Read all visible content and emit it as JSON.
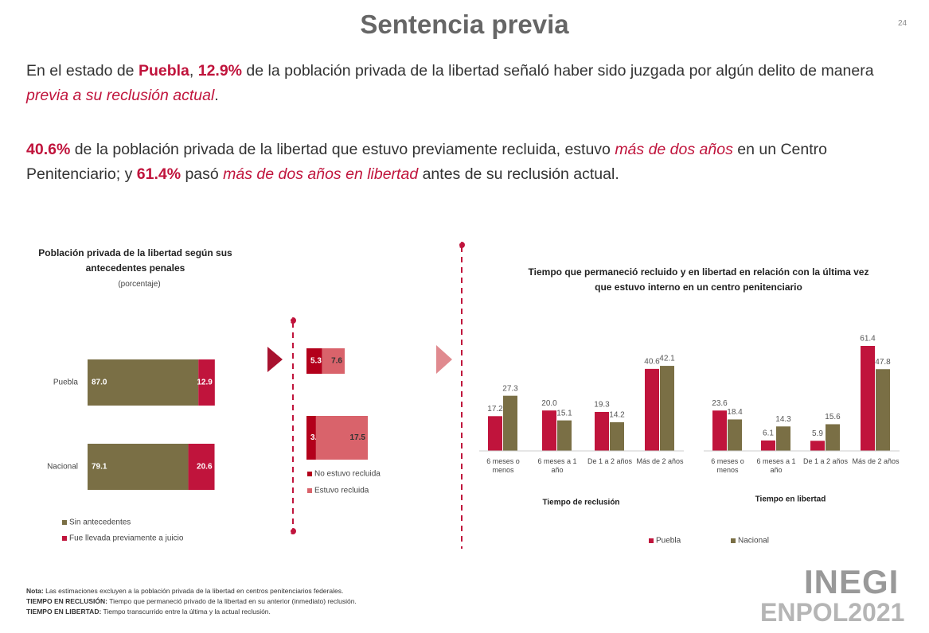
{
  "header": {
    "title": "Sentencia previa",
    "page": "24"
  },
  "paragraphs": [
    [
      "En el estado de ",
      "Puebla",
      ", ",
      "12.9%",
      " de la población privada de la libertad señaló haber sido juzgada por algún delito de manera ",
      "previa a su reclusión actual",
      "."
    ],
    [
      "40.6%",
      " de la población privada de la libertad que estuvo previamente recluida, estuvo ",
      "más de dos años",
      " en un Centro Penitenciario; y ",
      "61.4%",
      " pasó ",
      "más de dos años en libertad",
      " antes de su reclusión actual."
    ]
  ],
  "chart_data": [
    {
      "type": "hbar",
      "title": "Población privada de la libertad según sus antecedentes penales",
      "subtitle": "(porcentaje)",
      "categories": [
        "Puebla",
        "Nacional"
      ],
      "series": [
        {
          "name": "Sin antecedentes",
          "color": "#7a6f45",
          "values": [
            87.0,
            79.1
          ],
          "value_labels": [
            "87.0",
            "79.1"
          ]
        },
        {
          "name": "Fue llevada previamente a juicio",
          "color": "#c0143c",
          "values": [
            12.9,
            20.6
          ]
        }
      ]
    },
    {
      "type": "hbar",
      "categories": [
        null,
        null
      ],
      "series": [
        {
          "name": "No estuvo recluida",
          "color": "#b3001b",
          "values": [
            5.3,
            3.2
          ]
        },
        {
          "name": "Estuvo recluida",
          "color": "#d9636b",
          "values": [
            7.6,
            17.5
          ]
        }
      ]
    },
    {
      "type": "bar",
      "title": "Tiempo que permaneció recluido y en libertad en relación con la última vez que estuvo interno en un centro penitenciario",
      "xlabel": "Tiempo de reclusión",
      "categories": [
        "6 meses o menos",
        "6 meses a 1 año",
        "De 1 a 2 años",
        "Más de 2 años"
      ],
      "series": [
        {
          "name": "Puebla",
          "color": "#c0143c",
          "values": [
            17.2,
            20.0,
            19.3,
            40.6
          ],
          "value_labels": [
            "17.2",
            "20.0",
            "19.3",
            "40.6"
          ]
        },
        {
          "name": "Nacional",
          "color": "#7a6f45",
          "values": [
            27.3,
            15.1,
            14.2,
            42.1
          ]
        }
      ]
    },
    {
      "type": "bar",
      "xlabel": "Tiempo en libertad",
      "categories": [
        "6 meses o menos",
        "6 meses a 1 año",
        "De 1 a 2 años",
        "Más de 2 años"
      ],
      "series": [
        {
          "name": "Puebla",
          "color": "#c0143c",
          "values": [
            23.6,
            6.1,
            5.9,
            61.4
          ]
        },
        {
          "name": "Nacional",
          "color": "#7a6f45",
          "values": [
            18.4,
            14.3,
            15.6,
            47.8
          ]
        }
      ]
    }
  ],
  "notes": [
    [
      "Nota:",
      " Las estimaciones excluyen a la población privada de la libertad en centros penitenciarios federales."
    ],
    [
      "TIEMPO EN RECLUSIÓN:",
      " Tiempo que permaneció privado de la libertad en su anterior (inmediato) reclusión."
    ],
    [
      "TIEMPO EN LIBERTAD:",
      " Tiempo transcurrido entre la última y la actual reclusión."
    ]
  ],
  "logo": {
    "name": "INEGI",
    "survey": "ENPOL2021"
  }
}
